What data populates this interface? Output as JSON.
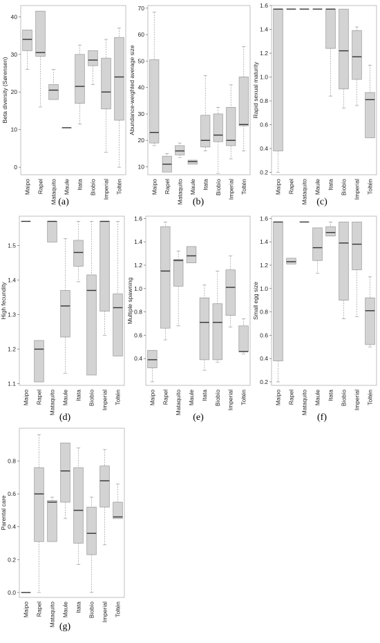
{
  "colors": {
    "box_fill": "#d3d3d3",
    "box_stroke": "#a0a0a0",
    "median": "#333333",
    "frame": "#b0b0b0",
    "whisker": "#9a9a9a"
  },
  "chart_data": [
    {
      "type": "boxplot",
      "panel": "(a)",
      "ylabel": "Beta diversity (Sørensen)",
      "ylim": [
        -2,
        43
      ],
      "yticks": [
        0,
        10,
        20,
        30,
        40
      ],
      "categories": [
        "Maipo",
        "Rapel",
        "Mataquito",
        "Maule",
        "Itata",
        "Biobío",
        "Imperial",
        "Toltén"
      ],
      "boxes": [
        {
          "min": 26,
          "q1": 31,
          "median": 34,
          "q3": 36.5,
          "max": 36.5
        },
        {
          "min": 16,
          "q1": 29.5,
          "median": 30.5,
          "q3": 41.5,
          "max": 41.5
        },
        {
          "min": 18,
          "q1": 18,
          "median": 20.5,
          "q3": 22,
          "max": 26
        },
        {
          "min": 10.5,
          "q1": 10.5,
          "median": 10.5,
          "q3": 10.5,
          "max": 10.5
        },
        {
          "min": 11.5,
          "q1": 17,
          "median": 21.5,
          "q3": 30,
          "max": 32.5
        },
        {
          "min": 22,
          "q1": 27,
          "median": 28.5,
          "q3": 31,
          "max": 31
        },
        {
          "min": 4,
          "q1": 15.5,
          "median": 20,
          "q3": 29,
          "max": 34
        },
        {
          "min": 0,
          "q1": 12.5,
          "median": 24,
          "q3": 34.5,
          "max": 37
        }
      ]
    },
    {
      "type": "boxplot",
      "panel": "(b)",
      "ylabel": "Abundance-weighted average size",
      "ylim": [
        7,
        71
      ],
      "yticks": [
        10,
        20,
        30,
        40,
        50,
        60,
        70
      ],
      "categories": [
        "Maipo",
        "Rapel",
        "Mataquito",
        "Maule",
        "Itata",
        "Biobío",
        "Imperial",
        "Toltén"
      ],
      "boxes": [
        {
          "min": 18,
          "q1": 19,
          "median": 23,
          "q3": 50.5,
          "max": 68.5
        },
        {
          "min": 8,
          "q1": 8,
          "median": 11,
          "q3": 14,
          "max": 15
        },
        {
          "min": 13.5,
          "q1": 14.5,
          "median": 16,
          "q3": 18,
          "max": 19
        },
        {
          "min": 11,
          "q1": 11,
          "median": 12,
          "q3": 12.5,
          "max": 12.5
        },
        {
          "min": 16,
          "q1": 17.5,
          "median": 20,
          "q3": 29.5,
          "max": 44.5
        },
        {
          "min": 7.5,
          "q1": 19.5,
          "median": 22,
          "q3": 30,
          "max": 32.5
        },
        {
          "min": 13,
          "q1": 18,
          "median": 20,
          "q3": 32.5,
          "max": 41
        },
        {
          "min": 16,
          "q1": 25.5,
          "median": 26,
          "q3": 44,
          "max": 55.5
        }
      ]
    },
    {
      "type": "boxplot",
      "panel": "(c)",
      "ylabel": "Rapid sexual maturity",
      "ylim": [
        0.18,
        1.6
      ],
      "yticks": [
        0.2,
        0.4,
        0.6,
        0.8,
        1.0,
        1.2,
        1.4,
        1.6
      ],
      "ytick_labels": [
        "0.2",
        "0.4",
        "0.6",
        "0.8",
        "1.0",
        "1.2",
        "1.4",
        "1.6"
      ],
      "categories": [
        "Maipo",
        "Rapel",
        "Mataquito",
        "Maule",
        "Itata",
        "Biobío",
        "Imperial",
        "Toltén"
      ],
      "boxes": [
        {
          "min": 0.2,
          "q1": 0.38,
          "median": 1.57,
          "q3": 1.57,
          "max": 1.57
        },
        {
          "min": 1.57,
          "q1": 1.57,
          "median": 1.57,
          "q3": 1.57,
          "max": 1.57
        },
        {
          "min": 1.57,
          "q1": 1.57,
          "median": 1.57,
          "q3": 1.57,
          "max": 1.57
        },
        {
          "min": 1.57,
          "q1": 1.57,
          "median": 1.57,
          "q3": 1.57,
          "max": 1.57
        },
        {
          "min": 0.84,
          "q1": 1.24,
          "median": 1.57,
          "q3": 1.57,
          "max": 1.57
        },
        {
          "min": 0.74,
          "q1": 0.9,
          "median": 1.22,
          "q3": 1.57,
          "max": 1.57
        },
        {
          "min": 0.76,
          "q1": 0.98,
          "median": 1.17,
          "q3": 1.39,
          "max": 1.42
        },
        {
          "min": 0.49,
          "q1": 0.49,
          "median": 0.81,
          "q3": 0.87,
          "max": 1.1
        }
      ]
    },
    {
      "type": "boxplot",
      "panel": "(d)",
      "ylabel": "High fecundity",
      "ylim": [
        1.095,
        1.585
      ],
      "yticks": [
        1.1,
        1.2,
        1.3,
        1.4,
        1.5
      ],
      "ytick_labels": [
        "1.1",
        "1.2",
        "1.3",
        "1.4",
        "1.5"
      ],
      "categories": [
        "Maipo",
        "Rapel",
        "Mataquito",
        "Maule",
        "Itata",
        "Biobío",
        "Imperial",
        "Toltén"
      ],
      "boxes": [
        {
          "min": 1.57,
          "q1": 1.57,
          "median": 1.57,
          "q3": 1.57,
          "max": 1.57
        },
        {
          "min": 1.105,
          "q1": 1.105,
          "median": 1.2,
          "q3": 1.225,
          "max": 1.225
        },
        {
          "min": 1.51,
          "q1": 1.51,
          "median": 1.57,
          "q3": 1.57,
          "max": 1.57
        },
        {
          "min": 1.13,
          "q1": 1.235,
          "median": 1.325,
          "q3": 1.37,
          "max": 1.52
        },
        {
          "min": 1.395,
          "q1": 1.44,
          "median": 1.48,
          "q3": 1.515,
          "max": 1.57
        },
        {
          "min": 1.125,
          "q1": 1.125,
          "median": 1.37,
          "q3": 1.415,
          "max": 1.57
        },
        {
          "min": 1.24,
          "q1": 1.31,
          "median": 1.57,
          "q3": 1.57,
          "max": 1.57
        },
        {
          "min": 1.18,
          "q1": 1.18,
          "median": 1.32,
          "q3": 1.36,
          "max": 1.57
        }
      ]
    },
    {
      "type": "boxplot",
      "panel": "(e)",
      "ylabel": "Multiple spawning",
      "ylim": [
        0.17,
        1.62
      ],
      "yticks": [
        0.4,
        0.6,
        0.8,
        1.0,
        1.2,
        1.4,
        1.6
      ],
      "ytick_labels": [
        "0.4",
        "0.6",
        "0.8",
        "1.0",
        "1.2",
        "1.4",
        "1.6"
      ],
      "categories": [
        "Maipo",
        "Rapel",
        "Mataquito",
        "Maule",
        "Itata",
        "Biobío",
        "Imperial",
        "Toltén"
      ],
      "boxes": [
        {
          "min": 0.2,
          "q1": 0.32,
          "median": 0.39,
          "q3": 0.47,
          "max": 0.47
        },
        {
          "min": 0.56,
          "q1": 0.66,
          "median": 1.15,
          "q3": 1.53,
          "max": 1.57
        },
        {
          "min": 0.68,
          "q1": 1.02,
          "median": 1.24,
          "q3": 1.25,
          "max": 1.32
        },
        {
          "min": 1.22,
          "q1": 1.22,
          "median": 1.28,
          "q3": 1.36,
          "max": 1.36
        },
        {
          "min": 0.3,
          "q1": 0.39,
          "median": 0.71,
          "q3": 0.92,
          "max": 1.03
        },
        {
          "min": 0.37,
          "q1": 0.39,
          "median": 0.71,
          "q3": 0.87,
          "max": 1.15
        },
        {
          "min": 0.67,
          "q1": 0.77,
          "median": 1.01,
          "q3": 1.16,
          "max": 1.28
        },
        {
          "min": 0.44,
          "q1": 0.46,
          "median": 0.46,
          "q3": 0.68,
          "max": 0.74
        }
      ]
    },
    {
      "type": "boxplot",
      "panel": "(f)",
      "ylabel": "Small egg size",
      "ylim": [
        0.17,
        1.62
      ],
      "yticks": [
        0.2,
        0.4,
        0.6,
        0.8,
        1.0,
        1.2,
        1.4,
        1.6
      ],
      "ytick_labels": [
        "0.2",
        "0.4",
        "0.6",
        "0.8",
        "1.0",
        "1.2",
        "1.4",
        "1.6"
      ],
      "categories": [
        "Maipo",
        "Rapel",
        "Mataquito",
        "Maule",
        "Itata",
        "Biobío",
        "Imperial",
        "Toltén"
      ],
      "boxes": [
        {
          "min": 0.2,
          "q1": 0.38,
          "median": 1.57,
          "q3": 1.57,
          "max": 1.57
        },
        {
          "min": 1.21,
          "q1": 1.21,
          "median": 1.23,
          "q3": 1.26,
          "max": 1.26
        },
        {
          "min": 1.57,
          "q1": 1.57,
          "median": 1.57,
          "q3": 1.57,
          "max": 1.57
        },
        {
          "min": 1.13,
          "q1": 1.24,
          "median": 1.35,
          "q3": 1.52,
          "max": 1.52
        },
        {
          "min": 1.45,
          "q1": 1.45,
          "median": 1.48,
          "q3": 1.53,
          "max": 1.57
        },
        {
          "min": 0.74,
          "q1": 0.9,
          "median": 1.39,
          "q3": 1.57,
          "max": 1.57
        },
        {
          "min": 0.76,
          "q1": 1.16,
          "median": 1.38,
          "q3": 1.57,
          "max": 1.57
        },
        {
          "min": 0.5,
          "q1": 0.52,
          "median": 0.81,
          "q3": 0.92,
          "max": 1.1
        }
      ]
    },
    {
      "type": "boxplot",
      "panel": "(g)",
      "ylabel": "Parental care",
      "ylim": [
        -0.03,
        1.0
      ],
      "yticks": [
        0.0,
        0.2,
        0.4,
        0.6,
        0.8
      ],
      "ytick_labels": [
        "0.0",
        "0.2",
        "0.4",
        "0.6",
        "0.8"
      ],
      "categories": [
        "Maipo",
        "Rapel",
        "Mataquito",
        "Maule",
        "Itata",
        "Biobío",
        "Imperial",
        "Toltén"
      ],
      "boxes": [
        {
          "min": 0.0,
          "q1": 0.0,
          "median": 0.0,
          "q3": 0.0,
          "max": 0.0
        },
        {
          "min": 0.0,
          "q1": 0.31,
          "median": 0.6,
          "q3": 0.76,
          "max": 0.96
        },
        {
          "min": 0.31,
          "q1": 0.31,
          "median": 0.55,
          "q3": 0.56,
          "max": 0.58
        },
        {
          "min": 0.45,
          "q1": 0.55,
          "median": 0.74,
          "q3": 0.91,
          "max": 0.91
        },
        {
          "min": 0.17,
          "q1": 0.3,
          "median": 0.5,
          "q3": 0.76,
          "max": 0.88
        },
        {
          "min": 0.0,
          "q1": 0.23,
          "median": 0.36,
          "q3": 0.52,
          "max": 0.58
        },
        {
          "min": 0.29,
          "q1": 0.52,
          "median": 0.68,
          "q3": 0.77,
          "max": 0.87
        },
        {
          "min": 0.45,
          "q1": 0.45,
          "median": 0.46,
          "q3": 0.55,
          "max": 0.66
        }
      ]
    }
  ]
}
